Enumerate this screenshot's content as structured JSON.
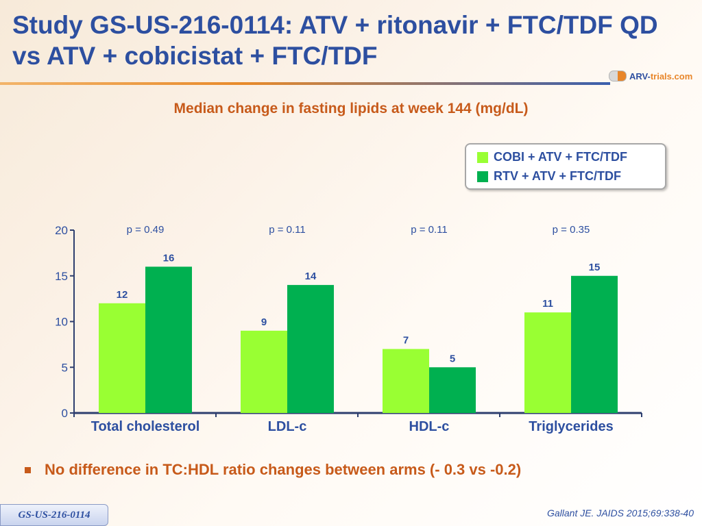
{
  "slide": {
    "title": "Study GS-US-216-0114: ATV + ritonavir + FTC/TDF QD vs ATV + cobicistat + FTC/TDF",
    "logo": {
      "part1": "ARV-",
      "part2": "trials",
      "part3": ".com"
    },
    "bullet": "No difference in TC:HDL ratio changes between arms (- 0.3 vs -0.2)",
    "badge": "GS-US-216-0114",
    "citation": "Gallant JE. JAIDS 2015;69:338-40"
  },
  "chart_data": {
    "type": "bar",
    "title": "Median change in fasting lipids at week 144 (mg/dL)",
    "categories": [
      "Total cholesterol",
      "LDL-c",
      "HDL-c",
      "Triglycerides"
    ],
    "series": [
      {
        "name": "COBI + ATV + FTC/TDF",
        "color": "#99ff33",
        "values": [
          12,
          9,
          7,
          11
        ]
      },
      {
        "name": "RTV + ATV + FTC/TDF",
        "color": "#00b050",
        "values": [
          16,
          14,
          5,
          15
        ]
      }
    ],
    "data_labels": [
      [
        "12",
        "9",
        "7",
        "11"
      ],
      [
        "16",
        "14",
        "5",
        "15"
      ]
    ],
    "p_values": [
      "p = 0.49",
      "p = 0.11",
      "p = 0.11",
      "p = 0.35"
    ],
    "y_ticks": [
      "0",
      "5",
      "10",
      "15",
      "20"
    ],
    "ylim": [
      0,
      20
    ],
    "legend_position": "top-right",
    "grid": false
  }
}
